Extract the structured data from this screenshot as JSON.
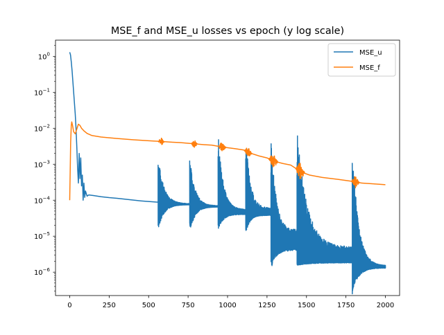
{
  "chart_data": {
    "type": "line",
    "title": "MSE_f and MSE_u losses vs epoch (y log scale)",
    "xlabel": "",
    "ylabel": "",
    "xlim": [
      -90,
      2090
    ],
    "ylim_log10": [
      -6.65,
      0.45
    ],
    "y_scale": "log",
    "x_ticks": [
      0,
      250,
      500,
      750,
      1000,
      1250,
      1500,
      1750,
      2000
    ],
    "x_tick_labels": [
      "0",
      "250",
      "500",
      "750",
      "1000",
      "1250",
      "1500",
      "1750",
      "2000"
    ],
    "y_ticks_log10": [
      0,
      -1,
      -2,
      -3,
      -4,
      -5,
      -6
    ],
    "y_tick_labels": [
      {
        "base": "10",
        "exp": "0"
      },
      {
        "base": "10",
        "exp": "−1"
      },
      {
        "base": "10",
        "exp": "−2"
      },
      {
        "base": "10",
        "exp": "−3"
      },
      {
        "base": "10",
        "exp": "−4"
      },
      {
        "base": "10",
        "exp": "−5"
      },
      {
        "base": "10",
        "exp": "−6"
      }
    ],
    "grid": false,
    "legend_position": "top-right",
    "series": [
      {
        "name": "MSE_u",
        "color": "#1f77b4",
        "points": [
          [
            0,
            1.3
          ],
          [
            5,
            1.1
          ],
          [
            10,
            0.7
          ],
          [
            15,
            0.4
          ],
          [
            20,
            0.2
          ],
          [
            25,
            0.1
          ],
          [
            30,
            0.05
          ],
          [
            35,
            0.025
          ],
          [
            40,
            0.01
          ],
          [
            45,
            0.003
          ],
          [
            50,
            0.0008
          ],
          [
            55,
            0.0003
          ],
          [
            60,
            0.002
          ],
          [
            65,
            0.0004
          ],
          [
            70,
            0.0015
          ],
          [
            75,
            0.00025
          ],
          [
            80,
            0.0005
          ],
          [
            85,
            0.0001
          ],
          [
            90,
            0.0003
          ],
          [
            95,
            0.00012
          ],
          [
            100,
            0.00018
          ],
          [
            110,
            0.00013
          ],
          [
            120,
            0.00014
          ],
          [
            150,
            0.000135
          ],
          [
            200,
            0.000125
          ],
          [
            250,
            0.000118
          ],
          [
            300,
            0.000113
          ],
          [
            350,
            0.000107
          ],
          [
            400,
            0.000101
          ],
          [
            450,
            9.6e-05
          ],
          [
            500,
            9.2e-05
          ],
          [
            560,
            8.8e-05
          ]
        ],
        "oscillations": [
          {
            "start": 560,
            "end": 760,
            "hi": 0.0018,
            "lo": 1.5e-05,
            "settle_hi": 8e-05,
            "settle_lo": 7.5e-05,
            "tail": 7.5e-05
          },
          {
            "start": 760,
            "end": 940,
            "hi": 0.0017,
            "lo": 1.2e-05,
            "settle_hi": 7e-05,
            "settle_lo": 6.5e-05,
            "tail": 6.5e-05
          },
          {
            "start": 940,
            "end": 1115,
            "hi": 0.008,
            "lo": 1.5e-05,
            "settle_hi": 5.5e-05,
            "settle_lo": 4e-05,
            "tail": 4.8e-05
          },
          {
            "start": 1115,
            "end": 1275,
            "hi": 0.007,
            "lo": 1.2e-05,
            "settle_hi": 6e-05,
            "settle_lo": 4e-05,
            "tail": 3.5e-05
          },
          {
            "start": 1275,
            "end": 1440,
            "hi": 0.009,
            "lo": 1.2e-06,
            "settle_hi": 1.5e-05,
            "settle_lo": 4e-06,
            "tail": 7e-06
          },
          {
            "start": 1440,
            "end": 1790,
            "hi": 0.009,
            "lo": 1.5e-06,
            "settle_hi": 5e-06,
            "settle_lo": 1.8e-06,
            "tail": 2.2e-06
          },
          {
            "start": 1790,
            "end": 2000,
            "hi": 0.005,
            "lo": 2.5e-07,
            "settle_hi": 1.5e-06,
            "settle_lo": 1.3e-06,
            "tail": 1.4e-06
          }
        ]
      },
      {
        "name": "MSE_f",
        "color": "#ff7f0e",
        "points": [
          [
            0,
            0.0001
          ],
          [
            3,
            0.0006
          ],
          [
            6,
            0.004
          ],
          [
            10,
            0.012
          ],
          [
            13,
            0.015
          ],
          [
            18,
            0.012
          ],
          [
            25,
            0.008
          ],
          [
            35,
            0.007
          ],
          [
            45,
            0.0095
          ],
          [
            55,
            0.013
          ],
          [
            65,
            0.012
          ],
          [
            75,
            0.01
          ],
          [
            90,
            0.0085
          ],
          [
            110,
            0.0072
          ],
          [
            140,
            0.0063
          ],
          [
            200,
            0.0057
          ],
          [
            300,
            0.0052
          ],
          [
            400,
            0.0048
          ],
          [
            500,
            0.0045
          ],
          [
            580,
            0.0043
          ],
          [
            650,
            0.0041
          ],
          [
            700,
            0.004
          ],
          [
            790,
            0.0037
          ],
          [
            850,
            0.0035
          ],
          [
            900,
            0.0034
          ],
          [
            970,
            0.003
          ],
          [
            1050,
            0.0027
          ],
          [
            1100,
            0.0025
          ],
          [
            1150,
            0.002
          ],
          [
            1200,
            0.0017
          ],
          [
            1250,
            0.0015
          ],
          [
            1300,
            0.0012
          ],
          [
            1350,
            0.00105
          ],
          [
            1400,
            0.00095
          ],
          [
            1470,
            0.0006
          ],
          [
            1520,
            0.0005
          ],
          [
            1600,
            0.00043
          ],
          [
            1700,
            0.00038
          ],
          [
            1800,
            0.00033
          ],
          [
            1850,
            0.0003
          ],
          [
            1900,
            0.00029
          ],
          [
            1950,
            0.00028
          ],
          [
            2000,
            0.00027
          ]
        ],
        "bumps": [
          {
            "x": 580,
            "spread": 20,
            "amp": 0.12
          },
          {
            "x": 790,
            "spread": 20,
            "amp": 0.12
          },
          {
            "x": 965,
            "spread": 25,
            "amp": 0.15
          },
          {
            "x": 1130,
            "spread": 25,
            "amp": 0.15
          },
          {
            "x": 1290,
            "spread": 30,
            "amp": 0.2
          },
          {
            "x": 1460,
            "spread": 30,
            "amp": 0.25
          },
          {
            "x": 1810,
            "spread": 25,
            "amp": 0.18
          }
        ]
      }
    ]
  }
}
